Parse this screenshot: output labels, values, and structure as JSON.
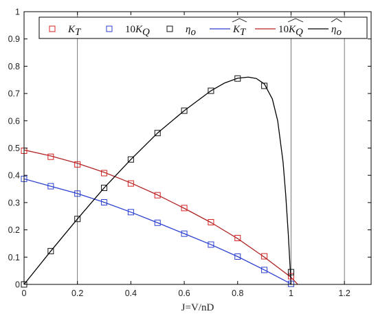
{
  "chart_data": {
    "type": "line",
    "title": "",
    "xlabel": "J=V/nD",
    "ylabel": "",
    "xlim": [
      0,
      1.3
    ],
    "ylim": [
      0,
      1.0
    ],
    "xticks": [
      "0",
      "0.2",
      "0.4",
      "0.6",
      "0.8",
      "1",
      "1.2"
    ],
    "yticks": [
      "0",
      "0.1",
      "0.2",
      "0.3",
      "0.4",
      "0.5",
      "0.6",
      "0.7",
      "0.8",
      "0.9",
      "1"
    ],
    "grid": "vertical lines at x = 0.2, 1, 1.2",
    "legend_position": "top",
    "series": [
      {
        "name_main": "K",
        "name_sub": "T",
        "name_prefix": "",
        "hat": false,
        "kind": "markers",
        "marker": "square",
        "color": "#d42020",
        "x": [
          0,
          0.1,
          0.2,
          0.3,
          0.4,
          0.5,
          0.6,
          0.7,
          0.8,
          0.9,
          1.0
        ],
        "y": [
          0.49,
          0.468,
          0.44,
          0.408,
          0.37,
          0.327,
          0.28,
          0.228,
          0.17,
          0.103,
          0.03
        ]
      },
      {
        "name_main": "K",
        "name_sub": "Q",
        "name_prefix": "10",
        "hat": false,
        "kind": "markers",
        "marker": "square",
        "color": "#2a3fd0",
        "x": [
          0,
          0.1,
          0.2,
          0.3,
          0.4,
          0.5,
          0.6,
          0.7,
          0.8,
          0.9,
          1.0
        ],
        "y": [
          0.387,
          0.36,
          0.333,
          0.301,
          0.265,
          0.226,
          0.186,
          0.146,
          0.102,
          0.053,
          0.002
        ]
      },
      {
        "name_main": "η",
        "name_sub": "o",
        "name_prefix": "",
        "hat": false,
        "kind": "markers",
        "marker": "square",
        "color": "#111111",
        "x": [
          0,
          0.1,
          0.2,
          0.3,
          0.4,
          0.5,
          0.6,
          0.7,
          0.8,
          0.9,
          1.0
        ],
        "y": [
          0,
          0.122,
          0.24,
          0.354,
          0.458,
          0.555,
          0.637,
          0.71,
          0.755,
          0.728,
          0.045
        ]
      },
      {
        "name_main": "K",
        "name_sub": "T",
        "name_prefix": "",
        "hat": true,
        "kind": "line",
        "color": "#2a3fd0",
        "x": [
          0,
          0.1,
          0.2,
          0.3,
          0.4,
          0.5,
          0.6,
          0.7,
          0.8,
          0.9,
          1.0
        ],
        "y": [
          0.387,
          0.36,
          0.333,
          0.301,
          0.265,
          0.226,
          0.186,
          0.146,
          0.102,
          0.053,
          0.002
        ]
      },
      {
        "name_main": "K",
        "name_sub": "Q",
        "name_prefix": "10",
        "hat": true,
        "kind": "line",
        "color": "#b02424",
        "x": [
          0,
          0.1,
          0.2,
          0.3,
          0.4,
          0.5,
          0.6,
          0.7,
          0.8,
          0.9,
          1.0,
          1.03
        ],
        "y": [
          0.493,
          0.471,
          0.444,
          0.411,
          0.372,
          0.328,
          0.279,
          0.227,
          0.168,
          0.1,
          0.026,
          -0.005
        ]
      },
      {
        "name_main": "η",
        "name_sub": "o",
        "name_prefix": "",
        "hat": true,
        "kind": "line",
        "color": "#000000",
        "x": [
          0,
          0.1,
          0.2,
          0.3,
          0.4,
          0.5,
          0.6,
          0.7,
          0.75,
          0.8,
          0.84,
          0.87,
          0.9,
          0.93,
          0.95,
          0.97,
          0.98,
          0.99,
          1.0
        ],
        "y": [
          0,
          0.122,
          0.24,
          0.354,
          0.458,
          0.555,
          0.637,
          0.71,
          0.738,
          0.756,
          0.76,
          0.755,
          0.735,
          0.68,
          0.6,
          0.45,
          0.33,
          0.18,
          0.0
        ]
      }
    ]
  }
}
